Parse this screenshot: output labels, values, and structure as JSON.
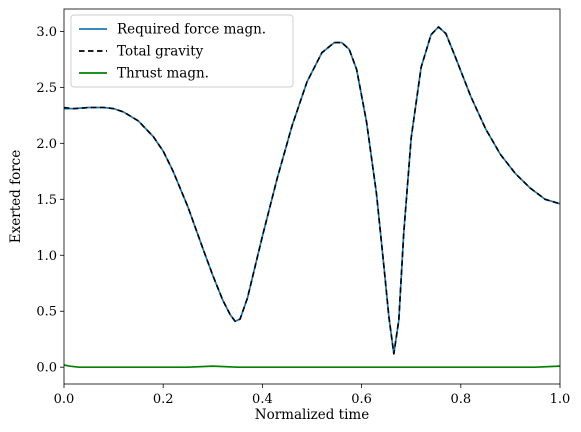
{
  "chart_data": {
    "type": "line",
    "xlabel": "Normalized time",
    "ylabel": "Exerted force",
    "xlim": [
      0.0,
      1.0
    ],
    "ylim": [
      -0.15,
      3.2
    ],
    "xticks": [
      "0.0",
      "0.2",
      "0.4",
      "0.6",
      "0.8",
      "1.0"
    ],
    "yticks": [
      "0.0",
      "0.5",
      "1.0",
      "1.5",
      "2.0",
      "2.5",
      "3.0"
    ],
    "grid": false,
    "legend_position": "top-left",
    "series": [
      {
        "name": "Required force magn.",
        "color": "#1f77b4",
        "style": "solid",
        "x": [
          0.0,
          0.02,
          0.05,
          0.08,
          0.1,
          0.12,
          0.15,
          0.18,
          0.2,
          0.22,
          0.25,
          0.28,
          0.3,
          0.32,
          0.335,
          0.345,
          0.355,
          0.37,
          0.4,
          0.43,
          0.46,
          0.49,
          0.52,
          0.545,
          0.56,
          0.575,
          0.59,
          0.61,
          0.63,
          0.645,
          0.655,
          0.665,
          0.675,
          0.685,
          0.7,
          0.72,
          0.74,
          0.755,
          0.77,
          0.79,
          0.82,
          0.85,
          0.88,
          0.91,
          0.94,
          0.97,
          1.0
        ],
        "values": [
          2.31,
          2.31,
          2.32,
          2.32,
          2.31,
          2.28,
          2.2,
          2.06,
          1.93,
          1.75,
          1.43,
          1.06,
          0.82,
          0.6,
          0.47,
          0.41,
          0.43,
          0.62,
          1.17,
          1.69,
          2.16,
          2.55,
          2.81,
          2.9,
          2.9,
          2.84,
          2.66,
          2.19,
          1.55,
          0.9,
          0.45,
          0.12,
          0.42,
          1.2,
          2.05,
          2.68,
          2.97,
          3.04,
          2.98,
          2.76,
          2.42,
          2.13,
          1.9,
          1.73,
          1.6,
          1.5,
          1.46
        ]
      },
      {
        "name": "Total gravity",
        "color": "#000000",
        "style": "dashed",
        "x": [
          0.0,
          0.02,
          0.05,
          0.08,
          0.1,
          0.12,
          0.15,
          0.18,
          0.2,
          0.22,
          0.25,
          0.28,
          0.3,
          0.32,
          0.335,
          0.345,
          0.355,
          0.37,
          0.4,
          0.43,
          0.46,
          0.49,
          0.52,
          0.545,
          0.56,
          0.575,
          0.59,
          0.61,
          0.63,
          0.645,
          0.655,
          0.665,
          0.675,
          0.685,
          0.7,
          0.72,
          0.74,
          0.755,
          0.77,
          0.79,
          0.82,
          0.85,
          0.88,
          0.91,
          0.94,
          0.97,
          1.0
        ],
        "values": [
          2.32,
          2.31,
          2.32,
          2.32,
          2.31,
          2.28,
          2.2,
          2.06,
          1.93,
          1.75,
          1.43,
          1.06,
          0.82,
          0.6,
          0.47,
          0.41,
          0.43,
          0.62,
          1.17,
          1.69,
          2.16,
          2.55,
          2.81,
          2.9,
          2.9,
          2.84,
          2.66,
          2.19,
          1.55,
          0.9,
          0.45,
          0.12,
          0.42,
          1.2,
          2.05,
          2.68,
          2.97,
          3.04,
          2.98,
          2.76,
          2.42,
          2.13,
          1.9,
          1.73,
          1.6,
          1.5,
          1.46
        ]
      },
      {
        "name": "Thrust magn.",
        "color": "#008000",
        "style": "solid",
        "x": [
          0.0,
          0.01,
          0.03,
          0.06,
          0.1,
          0.15,
          0.2,
          0.25,
          0.3,
          0.35,
          0.4,
          0.45,
          0.5,
          0.55,
          0.6,
          0.65,
          0.7,
          0.75,
          0.8,
          0.85,
          0.9,
          0.95,
          1.0
        ],
        "values": [
          0.02,
          0.01,
          0.0,
          0.0,
          0.0,
          0.0,
          0.0,
          0.0,
          0.01,
          0.0,
          0.0,
          0.0,
          0.0,
          0.0,
          0.0,
          0.0,
          0.0,
          0.0,
          0.0,
          0.0,
          0.0,
          0.0,
          0.01
        ]
      }
    ]
  }
}
